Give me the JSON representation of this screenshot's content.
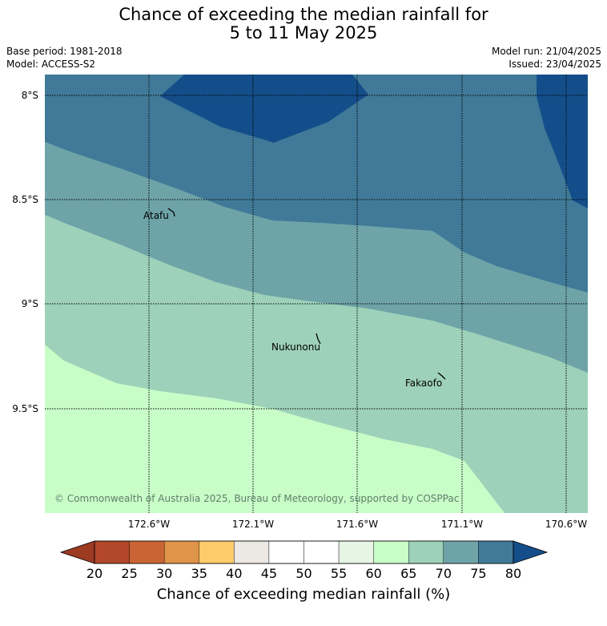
{
  "header": {
    "title_line1": "Chance of exceeding the median rainfall for",
    "title_line2": "5 to 11 May 2025",
    "base_period": "Base period: 1981-2018",
    "model": "Model: ACCESS-S2",
    "model_run": "Model run: 21/04/2025",
    "issued": "Issued: 23/04/2025"
  },
  "map": {
    "lat_labels": [
      "8°S",
      "8.5°S",
      "9°S",
      "9.5°S"
    ],
    "lon_labels": [
      "172.6°W",
      "172.1°W",
      "171.6°W",
      "171.1°W",
      "170.6°W"
    ],
    "places": [
      "Atafu",
      "Nukunonu",
      "Fakaofo"
    ],
    "copyright": "© Commonwealth of Australia 2025, Bureau of Meteorology, supported by COSPPac",
    "colors": {
      "band_80_plus": "#144e8a",
      "band_75_80": "#407a98",
      "band_70_75": "#6ea4a8",
      "band_65_70": "#9dd1b9",
      "band_60_65": "#c9fdc8"
    }
  },
  "colorbar": {
    "ticks": [
      "20",
      "25",
      "30",
      "35",
      "40",
      "45",
      "50",
      "55",
      "60",
      "65",
      "70",
      "75",
      "80"
    ],
    "colors": [
      "#b3472a",
      "#cb6434",
      "#e09449",
      "#fdcb6a",
      "#ece9e4",
      "#ffffff",
      "#ffffff",
      "#e7f5e4",
      "#c9fdc8",
      "#9dd1b9",
      "#6ea4a8",
      "#407a98"
    ],
    "under_color": "#9c3a22",
    "over_color": "#144e8a",
    "label": "Chance of exceeding median rainfall (%)"
  }
}
